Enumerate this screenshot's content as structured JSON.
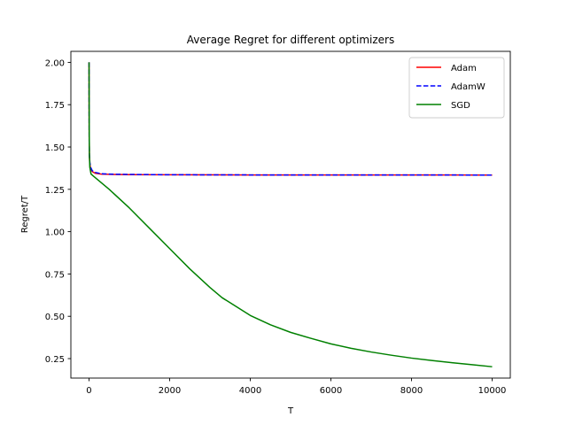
{
  "chart_data": {
    "type": "line",
    "title": "Average Regret for different optimizers",
    "xlabel": "T",
    "ylabel": "Regret/T",
    "xlim": [
      -450,
      10450
    ],
    "ylim": [
      0.135,
      2.065
    ],
    "xticks": [
      0,
      2000,
      4000,
      6000,
      8000,
      10000
    ],
    "yticks": [
      0.25,
      0.5,
      0.75,
      1.0,
      1.25,
      1.5,
      1.75,
      2.0
    ],
    "xtick_labels": [
      "0",
      "2000",
      "4000",
      "6000",
      "8000",
      "10000"
    ],
    "ytick_labels": [
      "0.25",
      "0.50",
      "0.75",
      "1.00",
      "1.25",
      "1.50",
      "1.75",
      "2.00"
    ],
    "grid": false,
    "legend_position": "top-right",
    "series": [
      {
        "name": "Adam",
        "color": "#ff0000",
        "style": "solid",
        "x": [
          1,
          2,
          5,
          10,
          20,
          40,
          80,
          150,
          300,
          600,
          1000,
          2000,
          4000,
          6000,
          8000,
          10000
        ],
        "y": [
          2.0,
          1.8,
          1.55,
          1.45,
          1.4,
          1.37,
          1.355,
          1.345,
          1.34,
          1.338,
          1.337,
          1.336,
          1.335,
          1.335,
          1.335,
          1.334
        ]
      },
      {
        "name": "AdamW",
        "color": "#0000ff",
        "style": "dashed",
        "x": [
          1,
          2,
          5,
          10,
          20,
          40,
          80,
          150,
          300,
          600,
          1000,
          2000,
          4000,
          6000,
          8000,
          10000
        ],
        "y": [
          2.0,
          1.8,
          1.55,
          1.45,
          1.41,
          1.38,
          1.36,
          1.35,
          1.342,
          1.339,
          1.338,
          1.336,
          1.335,
          1.335,
          1.335,
          1.334
        ]
      },
      {
        "name": "SGD",
        "color": "#008000",
        "style": "solid",
        "x": [
          1,
          2,
          5,
          10,
          20,
          50,
          100,
          300,
          500,
          1000,
          1500,
          2000,
          2500,
          3000,
          3300,
          3600,
          4000,
          4500,
          5000,
          5500,
          6000,
          6500,
          7000,
          7500,
          8000,
          8500,
          9000,
          9500,
          10000
        ],
        "y": [
          2.0,
          1.9,
          1.6,
          1.45,
          1.38,
          1.34,
          1.33,
          1.29,
          1.25,
          1.14,
          1.02,
          0.9,
          0.78,
          0.67,
          0.61,
          0.565,
          0.505,
          0.45,
          0.405,
          0.37,
          0.337,
          0.311,
          0.289,
          0.27,
          0.253,
          0.239,
          0.226,
          0.214,
          0.202
        ]
      }
    ]
  }
}
